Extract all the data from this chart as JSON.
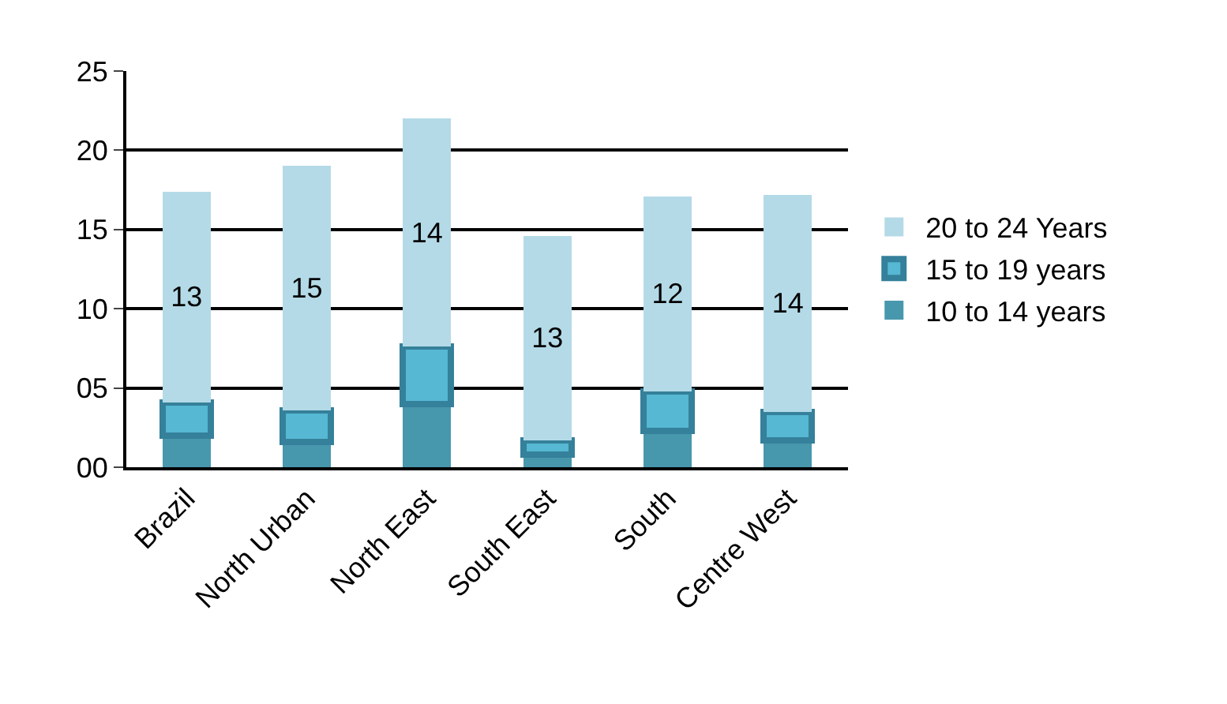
{
  "chart_data": {
    "type": "bar",
    "stacked": true,
    "categories": [
      "Brazil",
      "North Urban",
      "North East",
      "South East",
      "South",
      "Centre West"
    ],
    "series": [
      {
        "name": "10 to 14 years",
        "color": "#4797ad",
        "values": [
          2.0,
          1.6,
          4.0,
          0.8,
          2.3,
          1.7
        ]
      },
      {
        "name": "15 to 19 years",
        "color": "#56b8d3",
        "values": [
          2.1,
          2.0,
          3.6,
          0.9,
          2.5,
          1.8
        ]
      },
      {
        "name": "20 to 24 Years",
        "color": "#b4dae7",
        "values": [
          13.3,
          15.4,
          14.4,
          12.9,
          12.3,
          13.7
        ],
        "value_labels": [
          "13",
          "15",
          "14",
          "13",
          "12",
          "14"
        ]
      }
    ],
    "ylim": [
      0,
      25
    ],
    "yticks": [
      {
        "value": 0,
        "label": "00"
      },
      {
        "value": 5,
        "label": "05"
      },
      10,
      15,
      20,
      25
    ],
    "grid": "y",
    "legend": "right"
  }
}
